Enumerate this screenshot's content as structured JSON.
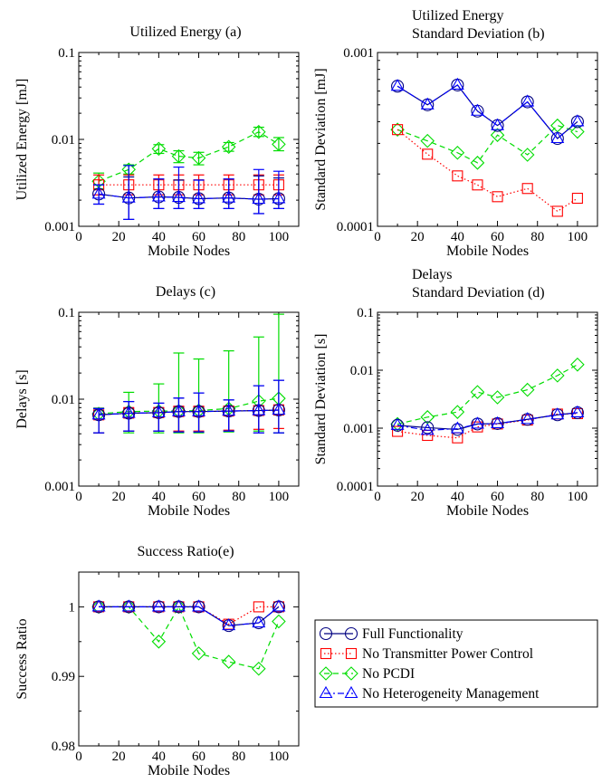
{
  "legend": {
    "entries": [
      {
        "label": "Full Functionality",
        "color": "#000080",
        "marker": "circle",
        "dash": "solid"
      },
      {
        "label": "No Transmitter Power Control",
        "color": "#ff0000",
        "marker": "square",
        "dash": "dotted"
      },
      {
        "label": "No PCDI",
        "color": "#00dd00",
        "marker": "diamond",
        "dash": "dashed"
      },
      {
        "label": "No Heterogeneity Management",
        "color": "#0000ff",
        "marker": "triangle",
        "dash": "dashdot"
      }
    ]
  },
  "chart_data": [
    {
      "id": "a",
      "type": "line",
      "title": [
        "Utilized Energy (a)"
      ],
      "xlabel": "Mobile Nodes",
      "ylabel": "Utilized Energy [mJ]",
      "yscale": "log",
      "xlim": [
        0,
        110
      ],
      "ylim": [
        0.001,
        0.1
      ],
      "xticks": [
        0,
        20,
        40,
        60,
        80,
        100
      ],
      "yticks": [
        0.001,
        0.01,
        0.1
      ],
      "ytick_labels": [
        "0.001",
        "0.01",
        "0.1"
      ],
      "x": [
        10,
        25,
        40,
        50,
        60,
        75,
        90,
        100
      ],
      "series": [
        {
          "values": [
            0.00235,
            0.00212,
            0.00218,
            0.00215,
            0.00208,
            0.00212,
            0.00205,
            0.00208
          ],
          "err_low": [
            0.0018,
            0.0012,
            0.0016,
            0.0016,
            0.0016,
            0.0016,
            0.0014,
            0.0016
          ],
          "err_high": [
            0.003,
            0.0037,
            0.0035,
            0.0034,
            0.0034,
            0.0035,
            0.0038,
            0.0036
          ]
        },
        {
          "values": [
            0.003,
            0.003,
            0.003,
            0.003,
            0.003,
            0.003,
            0.003,
            0.003
          ],
          "err_low": [
            0.0023,
            0.0023,
            0.0023,
            0.0023,
            0.0023,
            0.0023,
            0.0023,
            0.0023
          ],
          "err_high": [
            0.0039,
            0.0039,
            0.0039,
            0.0039,
            0.0039,
            0.0039,
            0.0039,
            0.0039
          ]
        },
        {
          "values": [
            0.0033,
            0.0045,
            0.0078,
            0.0064,
            0.0061,
            0.0082,
            0.0122,
            0.0088
          ],
          "err_low": [
            0.0027,
            0.004,
            0.0069,
            0.0054,
            0.0051,
            0.0073,
            0.0108,
            0.0074
          ],
          "err_high": [
            0.0041,
            0.0051,
            0.0087,
            0.0074,
            0.0071,
            0.0092,
            0.0138,
            0.0105
          ]
        },
        {
          "values": [
            0.00235,
            0.00212,
            0.00218,
            0.00215,
            0.00208,
            0.00212,
            0.00205,
            0.00208
          ],
          "err_low": [
            0.0018,
            0.0012,
            0.0016,
            0.0016,
            0.0016,
            0.0016,
            0.0014,
            0.0016
          ],
          "err_high": [
            0.003,
            0.005,
            0.0035,
            0.0048,
            0.0034,
            0.0035,
            0.0045,
            0.0043
          ]
        }
      ]
    },
    {
      "id": "b",
      "type": "line",
      "title": [
        "Utilized Energy",
        "Standard Deviation (b)"
      ],
      "xlabel": "Mobile Nodes",
      "ylabel": "Standard Deviation [mJ]",
      "yscale": "log",
      "xlim": [
        0,
        110
      ],
      "ylim": [
        0.0001,
        0.001
      ],
      "xticks": [
        0,
        20,
        40,
        60,
        80,
        100
      ],
      "yticks": [
        0.0001,
        0.001
      ],
      "ytick_labels": [
        "0.0001",
        "0.001"
      ],
      "x": [
        10,
        25,
        40,
        50,
        60,
        75,
        90,
        100
      ],
      "series": [
        {
          "values": [
            0.00064,
            0.0005,
            0.00065,
            0.00046,
            0.00038,
            0.00052,
            0.00032,
            0.0004
          ]
        },
        {
          "values": [
            0.00036,
            0.00026,
            0.000195,
            0.000173,
            0.000148,
            0.000165,
            0.000122,
            0.000145
          ]
        },
        {
          "values": [
            0.00036,
            0.00031,
            0.000265,
            0.000232,
            0.000335,
            0.000258,
            0.00038,
            0.00035
          ]
        },
        {
          "values": [
            0.00064,
            0.0005,
            0.00065,
            0.00046,
            0.00038,
            0.00052,
            0.00032,
            0.0004
          ]
        }
      ]
    },
    {
      "id": "c",
      "type": "line",
      "title": [
        "Delays (c)"
      ],
      "xlabel": "Mobile Nodes",
      "ylabel": "Delays [s]",
      "yscale": "log",
      "xlim": [
        0,
        110
      ],
      "ylim": [
        0.001,
        0.1
      ],
      "xticks": [
        0,
        20,
        40,
        60,
        80,
        100
      ],
      "yticks": [
        0.001,
        0.01,
        0.1
      ],
      "ytick_labels": [
        "0.001",
        "0.01",
        "0.1"
      ],
      "x": [
        10,
        25,
        40,
        50,
        60,
        75,
        90,
        100
      ],
      "series": [
        {
          "values": [
            0.0066,
            0.0069,
            0.007,
            0.0072,
            0.0072,
            0.0073,
            0.0074,
            0.0075
          ],
          "err_low": [
            0.0041,
            0.0043,
            0.0043,
            0.0042,
            0.0042,
            0.0043,
            0.0041,
            0.0041
          ],
          "err_high": [
            0.0078,
            0.0094,
            0.009,
            0.0103,
            0.0118,
            0.0098,
            0.0143,
            0.0165
          ]
        },
        {
          "values": [
            0.0066,
            0.0069,
            0.007,
            0.0072,
            0.0072,
            0.0073,
            0.0074,
            0.0075
          ],
          "err_low": [
            0.0041,
            0.0043,
            0.0043,
            0.0043,
            0.0043,
            0.0044,
            0.0045,
            0.0046
          ],
          "err_high": [
            0.0078,
            0.008,
            0.008,
            0.0083,
            0.0083,
            0.0083,
            0.0084,
            0.0086
          ]
        },
        {
          "values": [
            0.0068,
            0.0072,
            0.0073,
            0.0073,
            0.0074,
            0.0078,
            0.0095,
            0.0102
          ],
          "err_low": [
            0.0041,
            0.0041,
            0.0041,
            0.0041,
            0.0041,
            0.0042,
            0.0043,
            0.0041
          ],
          "err_high": [
            0.0079,
            0.012,
            0.015,
            0.034,
            0.029,
            0.036,
            0.052,
            0.095
          ]
        },
        {
          "values": [
            0.0066,
            0.0069,
            0.007,
            0.0072,
            0.0072,
            0.0073,
            0.0074,
            0.0075
          ],
          "err_low": [
            0.0041,
            0.0043,
            0.0043,
            0.0042,
            0.0042,
            0.0043,
            0.0041,
            0.0041
          ],
          "err_high": [
            0.0078,
            0.0094,
            0.009,
            0.0103,
            0.0118,
            0.0098,
            0.0143,
            0.0165
          ]
        }
      ]
    },
    {
      "id": "d",
      "type": "line",
      "title": [
        "Delays",
        "Standard Deviation (d)"
      ],
      "xlabel": "Mobile Nodes",
      "ylabel": "Standard Deviation [s]",
      "yscale": "log",
      "xlim": [
        0,
        110
      ],
      "ylim": [
        0.0001,
        0.1
      ],
      "xticks": [
        0,
        20,
        40,
        60,
        80,
        100
      ],
      "yticks": [
        0.0001,
        0.001,
        0.01,
        0.1
      ],
      "ytick_labels": [
        "0.0001",
        "0.001",
        "0.01",
        "0.1"
      ],
      "x": [
        10,
        25,
        40,
        50,
        60,
        75,
        90,
        100
      ],
      "series": [
        {
          "values": [
            0.00112,
            0.00102,
            0.00095,
            0.00118,
            0.0012,
            0.00142,
            0.0017,
            0.00185
          ]
        },
        {
          "values": [
            0.00088,
            0.00075,
            0.00068,
            0.00105,
            0.00118,
            0.00138,
            0.00175,
            0.00178
          ]
        },
        {
          "values": [
            0.00118,
            0.00155,
            0.0019,
            0.0042,
            0.0034,
            0.0046,
            0.0081,
            0.0125
          ]
        },
        {
          "values": [
            0.00112,
            0.00092,
            0.00098,
            0.00118,
            0.0012,
            0.00142,
            0.0017,
            0.00185
          ]
        }
      ]
    },
    {
      "id": "e",
      "type": "line",
      "title": [
        "Success Ratio(e)"
      ],
      "xlabel": "Mobile Nodes",
      "ylabel": "Success Ratio",
      "yscale": "linear",
      "xlim": [
        0,
        110
      ],
      "ylim": [
        0.98,
        1.005
      ],
      "xticks": [
        0,
        20,
        40,
        60,
        80,
        100
      ],
      "yticks": [
        0.98,
        0.99,
        1.0
      ],
      "ytick_labels": [
        "0.98",
        "0.99",
        "1"
      ],
      "x": [
        10,
        25,
        40,
        50,
        60,
        75,
        90,
        100
      ],
      "series": [
        {
          "values": [
            1.0,
            1.0,
            1.0,
            1.0,
            1.0,
            0.9973,
            0.9977,
            1.0
          ]
        },
        {
          "values": [
            1.0,
            1.0,
            1.0,
            1.0,
            1.0,
            0.9975,
            1.0,
            1.0
          ]
        },
        {
          "values": [
            1.0,
            1.0,
            0.995,
            1.0,
            0.9933,
            0.9921,
            0.9911,
            0.9979
          ]
        },
        {
          "values": [
            1.0,
            1.0,
            1.0,
            1.0,
            1.0,
            0.9973,
            0.9977,
            1.0
          ]
        }
      ]
    }
  ]
}
